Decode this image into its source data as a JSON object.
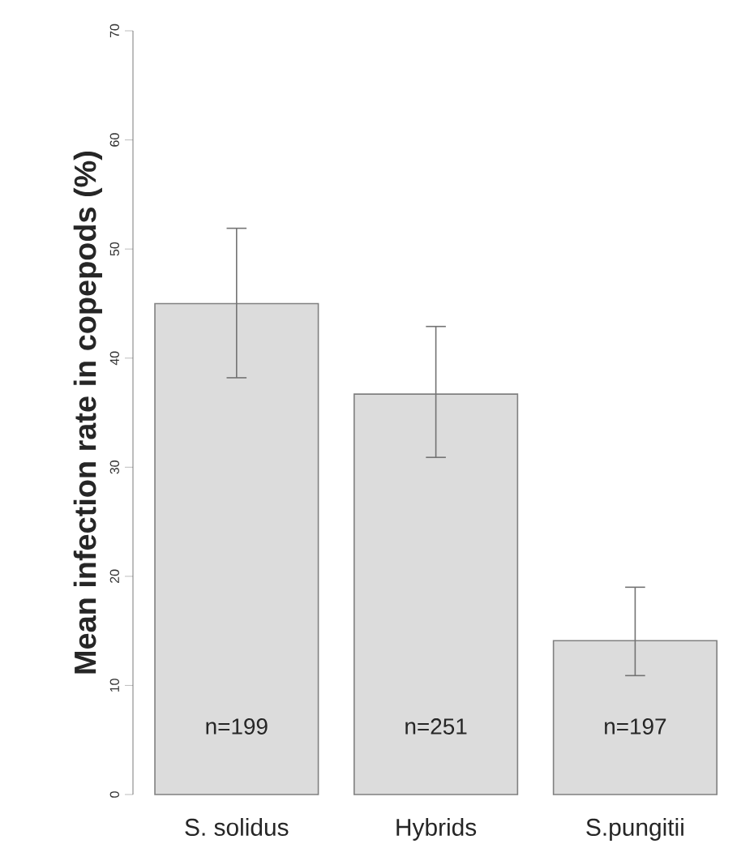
{
  "chart_data": {
    "type": "bar",
    "ylabel": "Mean infection rate in copepods (%)",
    "categories": [
      "S. solidus",
      "Hybrids",
      "S.pungitii"
    ],
    "values": [
      45.0,
      36.7,
      14.1
    ],
    "color": "#dcdcdc",
    "errors": [
      [
        38.2,
        51.9
      ],
      [
        30.9,
        42.9
      ],
      [
        10.9,
        19.0
      ]
    ],
    "ylim": [
      0,
      70
    ],
    "yticks": [
      0,
      10,
      20,
      30,
      40,
      50,
      60,
      70
    ],
    "annotations": [
      "n=199",
      "n=251",
      "n=197"
    ]
  }
}
